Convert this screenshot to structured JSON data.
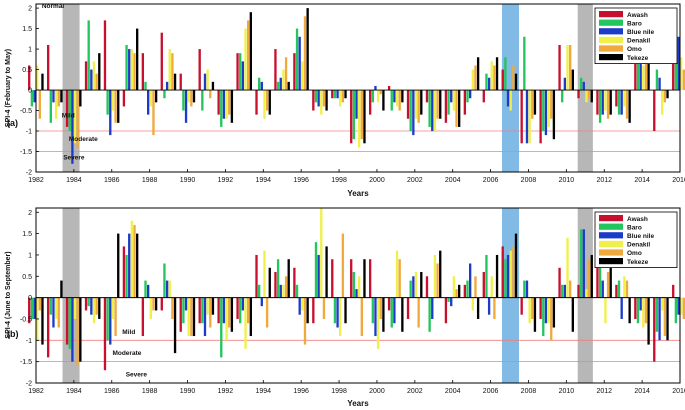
{
  "chart_data": [
    {
      "type": "bar",
      "panel_label": "(a)",
      "ylabel": "SPI-4 (February to May)",
      "xlabel": "Years",
      "xlim": [
        1982,
        2016
      ],
      "xticks": [
        "1982",
        "1984",
        "1986",
        "1988",
        "1990",
        "1992",
        "1994",
        "1996",
        "1998",
        "2000",
        "2002",
        "2004",
        "2006",
        "2008",
        "2010",
        "2012",
        "2014",
        "2016"
      ],
      "ylim": [
        -2,
        2.1
      ],
      "yticks": [
        "-2",
        "-1.5",
        "-1",
        "-0.5",
        "0",
        "0.5",
        "1",
        "1.5",
        "2"
      ],
      "grid": false,
      "legend": "top-right",
      "thresholds": [
        -1,
        -1.5
      ],
      "class_labels": [
        {
          "text": "Normal",
          "x": 1982.9,
          "y": 2.05
        },
        {
          "text": "Mild",
          "x": 1983.7,
          "y": -0.62
        },
        {
          "text": "Moderate",
          "x": 1984.5,
          "y": -1.2
        },
        {
          "text": "Severe",
          "x": 1984.0,
          "y": -1.65
        }
      ],
      "shaded_periods": [
        {
          "start": 1983.4,
          "end": 1984.3,
          "color": "#aaaaaa"
        },
        {
          "start": 2006.6,
          "end": 2007.5,
          "color": "#6aaee0"
        },
        {
          "start": 2010.6,
          "end": 2011.4,
          "color": "#aaaaaa"
        }
      ],
      "years": [
        1982,
        1983,
        1984,
        1985,
        1986,
        1987,
        1988,
        1989,
        1990,
        1991,
        1992,
        1993,
        1994,
        1995,
        1996,
        1997,
        1998,
        1999,
        2000,
        2001,
        2002,
        2003,
        2004,
        2005,
        2006,
        2007,
        2008,
        2009,
        2010,
        2011,
        2012,
        2013,
        2014,
        2015,
        2016
      ],
      "series": [
        {
          "name": "Awash",
          "color": "#c8102e",
          "values": [
            0.6,
            1.1,
            -0.9,
            0.7,
            1.7,
            -0.4,
            0.9,
            1.4,
            0.4,
            1.0,
            -0.6,
            0.9,
            -0.6,
            1.0,
            0.9,
            -0.5,
            -0.2,
            -1.3,
            -0.6,
            0.1,
            -0.7,
            -0.3,
            -0.8,
            -0.6,
            -0.3,
            0.5,
            -1.3,
            -1.3,
            1.1,
            -0.2,
            -0.6,
            -0.4,
            1.1,
            -1.0,
            0.8
          ]
        },
        {
          "name": "Baro",
          "color": "#22c55e",
          "values": [
            -0.4,
            -0.8,
            -1.0,
            1.7,
            -0.6,
            1.1,
            0.2,
            -0.2,
            -0.5,
            -0.5,
            -0.9,
            0.9,
            0.3,
            0.2,
            1.5,
            -0.3,
            -0.2,
            -1.2,
            -0.3,
            -0.5,
            -1.0,
            -0.9,
            -0.6,
            -0.3,
            0.4,
            0.8,
            1.3,
            -1.0,
            -0.3,
            0.3,
            -0.8,
            -0.6,
            0.9,
            0.5,
            1.3
          ]
        },
        {
          "name": "Blue nile",
          "color": "#1d3bc9",
          "values": [
            -0.3,
            -0.3,
            -1.8,
            0.5,
            -1.1,
            1.0,
            -0.6,
            0.2,
            -0.8,
            0.4,
            -0.7,
            0.7,
            0.2,
            0.3,
            1.3,
            -0.4,
            -0.2,
            -0.7,
            0.1,
            -0.3,
            -1.1,
            -1.0,
            -0.3,
            -0.2,
            0.3,
            -0.4,
            -1.3,
            -1.1,
            0.3,
            0.2,
            -0.6,
            -0.6,
            1.1,
            0.3,
            1.3
          ]
        },
        {
          "name": "Denakil",
          "color": "#f0f04a",
          "values": [
            0.6,
            -0.7,
            -1.3,
            0.7,
            -0.5,
            1.0,
            -0.4,
            1.0,
            -0.3,
            0.5,
            -0.7,
            1.5,
            -0.7,
            0.5,
            0.7,
            -0.6,
            -0.4,
            -1.4,
            -0.3,
            -0.4,
            -0.7,
            -1.0,
            -0.5,
            0.5,
            0.7,
            -0.5,
            -1.3,
            -0.9,
            1.1,
            -0.3,
            -0.5,
            -0.4,
            0.6,
            -0.6,
            0.8
          ]
        },
        {
          "name": "Omo",
          "color": "#f0a93c",
          "values": [
            -0.7,
            -0.4,
            -1.4,
            0.4,
            -0.8,
            0.9,
            -1.1,
            0.9,
            -0.4,
            -0.2,
            -0.6,
            1.7,
            -0.5,
            0.8,
            1.8,
            -0.4,
            -0.3,
            -1.2,
            -0.1,
            -0.5,
            -0.8,
            -0.7,
            -0.9,
            0.6,
            0.6,
            0.6,
            -0.7,
            -0.7,
            1.1,
            -0.2,
            -0.7,
            -0.7,
            1.0,
            -0.3,
            0.5
          ]
        },
        {
          "name": "Tekeze",
          "color": "#000000",
          "values": [
            0.4,
            -0.3,
            -0.4,
            0.9,
            -0.8,
            1.5,
            -0.3,
            0.4,
            -0.3,
            0.2,
            -0.8,
            1.9,
            -0.6,
            0.2,
            2.0,
            -0.5,
            -0.2,
            -1.3,
            -0.5,
            -0.3,
            -0.6,
            -0.7,
            -0.9,
            0.8,
            0.8,
            0.4,
            -0.6,
            -1.2,
            0.5,
            -0.3,
            -0.6,
            -0.8,
            1.1,
            -0.2,
            1.2
          ]
        }
      ]
    },
    {
      "type": "bar",
      "panel_label": "(b)",
      "ylabel": "SPI-4 (June to September)",
      "xlabel": "Years",
      "xlim": [
        1982,
        2016
      ],
      "xticks": [
        "1982",
        "1984",
        "1986",
        "1988",
        "1990",
        "1992",
        "1994",
        "1996",
        "1998",
        "2000",
        "2002",
        "2004",
        "2006",
        "2008",
        "2010",
        "2012",
        "2014",
        "2016"
      ],
      "ylim": [
        -2,
        2.1
      ],
      "yticks": [
        "-2",
        "-1.5",
        "-1",
        "-0.5",
        "0",
        "0.5",
        "1",
        "1.5",
        "2"
      ],
      "grid": false,
      "legend": "top-right",
      "thresholds": [
        -1,
        -1.5
      ],
      "class_labels": [
        {
          "text": "Mild",
          "x": 1986.9,
          "y": -0.8
        },
        {
          "text": "Moderate",
          "x": 1986.8,
          "y": -1.3
        },
        {
          "text": "Severe",
          "x": 1987.3,
          "y": -1.8
        }
      ],
      "shaded_periods": [
        {
          "start": 1983.4,
          "end": 1984.3,
          "color": "#aaaaaa"
        },
        {
          "start": 2006.6,
          "end": 2007.5,
          "color": "#6aaee0"
        },
        {
          "start": 2010.6,
          "end": 2011.4,
          "color": "#aaaaaa"
        }
      ],
      "years": [
        1982,
        1983,
        1984,
        1985,
        1986,
        1987,
        1988,
        1989,
        1990,
        1991,
        1992,
        1993,
        1994,
        1995,
        1996,
        1997,
        1998,
        1999,
        2000,
        2001,
        2002,
        2003,
        2004,
        2005,
        2006,
        2007,
        2008,
        2009,
        2010,
        2011,
        2012,
        2013,
        2014,
        2015,
        2016
      ],
      "series": [
        {
          "name": "Awash",
          "color": "#c8102e",
          "values": [
            -0.6,
            -1.4,
            -1.1,
            -0.3,
            -1.7,
            1.2,
            -0.9,
            -0.3,
            -0.8,
            -0.6,
            -0.6,
            -0.5,
            1.0,
            0.6,
            0.7,
            -0.6,
            0.9,
            0.9,
            0.9,
            -0.3,
            -0.5,
            0.5,
            -0.6,
            0.3,
            0.6,
            1.2,
            -0.4,
            -0.5,
            0.7,
            0.3,
            0.8,
            0.3,
            -0.5,
            -1.5,
            0.3
          ]
        },
        {
          "name": "Baro",
          "color": "#22c55e",
          "values": [
            -0.5,
            -0.4,
            -1.2,
            -0.2,
            -1.0,
            1.0,
            0.4,
            0.8,
            -0.6,
            -0.6,
            -1.4,
            -0.6,
            0.3,
            0.9,
            0.3,
            1.3,
            -0.6,
            0.6,
            -0.6,
            -0.7,
            0.4,
            -0.8,
            -0.1,
            0.4,
            1.0,
            0.9,
            0.4,
            -0.9,
            0.3,
            1.6,
            0.8,
            0.4,
            -0.6,
            -0.8,
            -0.6
          ]
        },
        {
          "name": "Blue nile",
          "color": "#1d3bc9",
          "values": [
            -0.5,
            -0.7,
            -1.5,
            -0.4,
            -1.1,
            1.5,
            0.3,
            0.4,
            -0.3,
            -0.9,
            -0.6,
            -0.3,
            -0.2,
            0.3,
            -0.4,
            1.0,
            -0.7,
            0.2,
            -0.9,
            -0.6,
            0.5,
            -0.5,
            -0.2,
            0.8,
            -0.4,
            1.0,
            0.4,
            -0.6,
            0.3,
            1.6,
            0.4,
            -0.5,
            -0.3,
            -1.0,
            -0.4
          ]
        },
        {
          "name": "Denakil",
          "color": "#f0f04a",
          "values": [
            -1.0,
            -0.5,
            -0.5,
            -0.6,
            -0.5,
            1.8,
            -0.5,
            0.4,
            -0.9,
            -0.4,
            -1.0,
            -1.2,
            1.1,
            0.3,
            -0.3,
            2.1,
            -0.9,
            0.5,
            -1.2,
            1.1,
            0.6,
            1.0,
            0.5,
            -0.3,
            0.5,
            1.1,
            -0.6,
            -0.6,
            1.4,
            0.2,
            -0.6,
            0.5,
            -0.7,
            -0.3,
            -0.4
          ]
        },
        {
          "name": "Omo",
          "color": "#f0a93c",
          "values": [
            -0.3,
            -0.7,
            -1.6,
            -0.4,
            -0.9,
            1.7,
            -0.3,
            -0.5,
            -0.9,
            -0.7,
            -0.7,
            -0.6,
            -0.7,
            0.5,
            -1.1,
            -0.5,
            1.5,
            -0.9,
            -0.5,
            0.9,
            -0.7,
            0.8,
            0.2,
            0.5,
            -0.5,
            1.2,
            -0.5,
            -1.0,
            0.4,
            0.9,
            0.6,
            0.4,
            -0.6,
            -0.9,
            -0.5
          ]
        },
        {
          "name": "Tekeze",
          "color": "#000000",
          "values": [
            -1.1,
            0.4,
            -1.5,
            -0.5,
            1.5,
            1.5,
            -0.3,
            -1.3,
            -0.9,
            -0.4,
            -0.8,
            -0.9,
            0.7,
            0.9,
            -0.6,
            1.2,
            -0.6,
            0.9,
            -0.8,
            -0.8,
            0.6,
            1.1,
            0.3,
            -0.5,
            1.0,
            1.5,
            -0.8,
            -0.7,
            -0.8,
            1.0,
            0.7,
            -0.6,
            -1.1,
            -1.0,
            -0.6
          ]
        }
      ]
    }
  ]
}
